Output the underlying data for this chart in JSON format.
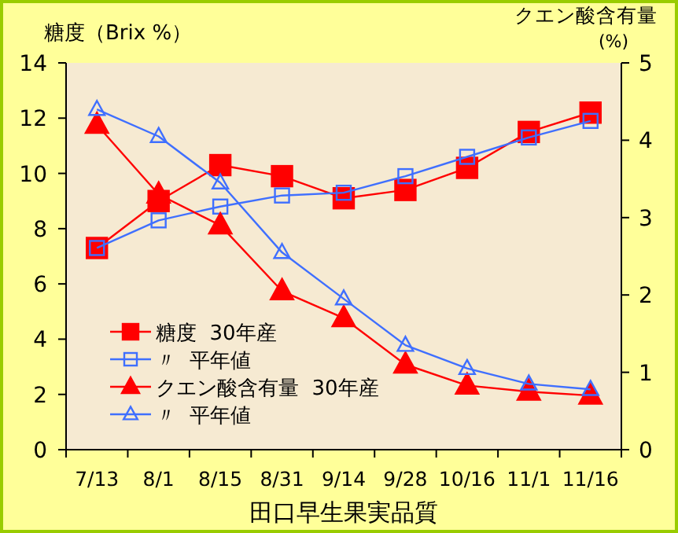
{
  "chart_data": {
    "type": "line",
    "xlabel": "田口早生果実品質",
    "ylabel": "糖度（Brix %）",
    "y2label": "クエン酸含有量 (%)",
    "categories": [
      "7/13",
      "8/1",
      "8/15",
      "8/31",
      "9/14",
      "9/28",
      "10/16",
      "11/1",
      "11/16"
    ],
    "ylim": [
      0,
      14
    ],
    "yticks": [
      0,
      2,
      4,
      6,
      8,
      10,
      12,
      14
    ],
    "y2lim": [
      0,
      5
    ],
    "y2ticks": [
      0,
      1,
      2,
      3,
      4,
      5
    ],
    "grid": false,
    "legend": "bottom left",
    "line_style": "solid",
    "series": [
      {
        "name": "糖度  30年産",
        "color": "#ff0000",
        "marker": "square",
        "values": [
          7.3,
          9.0,
          10.3,
          9.9,
          9.1,
          9.4,
          10.2,
          11.5,
          12.2
        ]
      },
      {
        "name": "〃  平年値",
        "color": "#3f6fff",
        "marker": "square",
        "values": [
          7.3,
          8.3,
          8.8,
          9.2,
          9.3,
          9.9,
          10.6,
          11.3,
          11.9
        ]
      },
      {
        "name": "クエン酸含有量  30年産",
        "color": "#ff0000",
        "marker": "triangle",
        "axis": "y2",
        "values": [
          4.2,
          3.3,
          2.9,
          2.05,
          1.7,
          1.1,
          0.83,
          0.75,
          0.7
        ]
      },
      {
        "name": "〃  平年値",
        "color": "#3f6fff",
        "marker": "triangle",
        "axis": "y2",
        "values": [
          4.4,
          4.05,
          3.45,
          2.55,
          1.95,
          1.35,
          1.05,
          0.85,
          0.78
        ]
      }
    ]
  }
}
